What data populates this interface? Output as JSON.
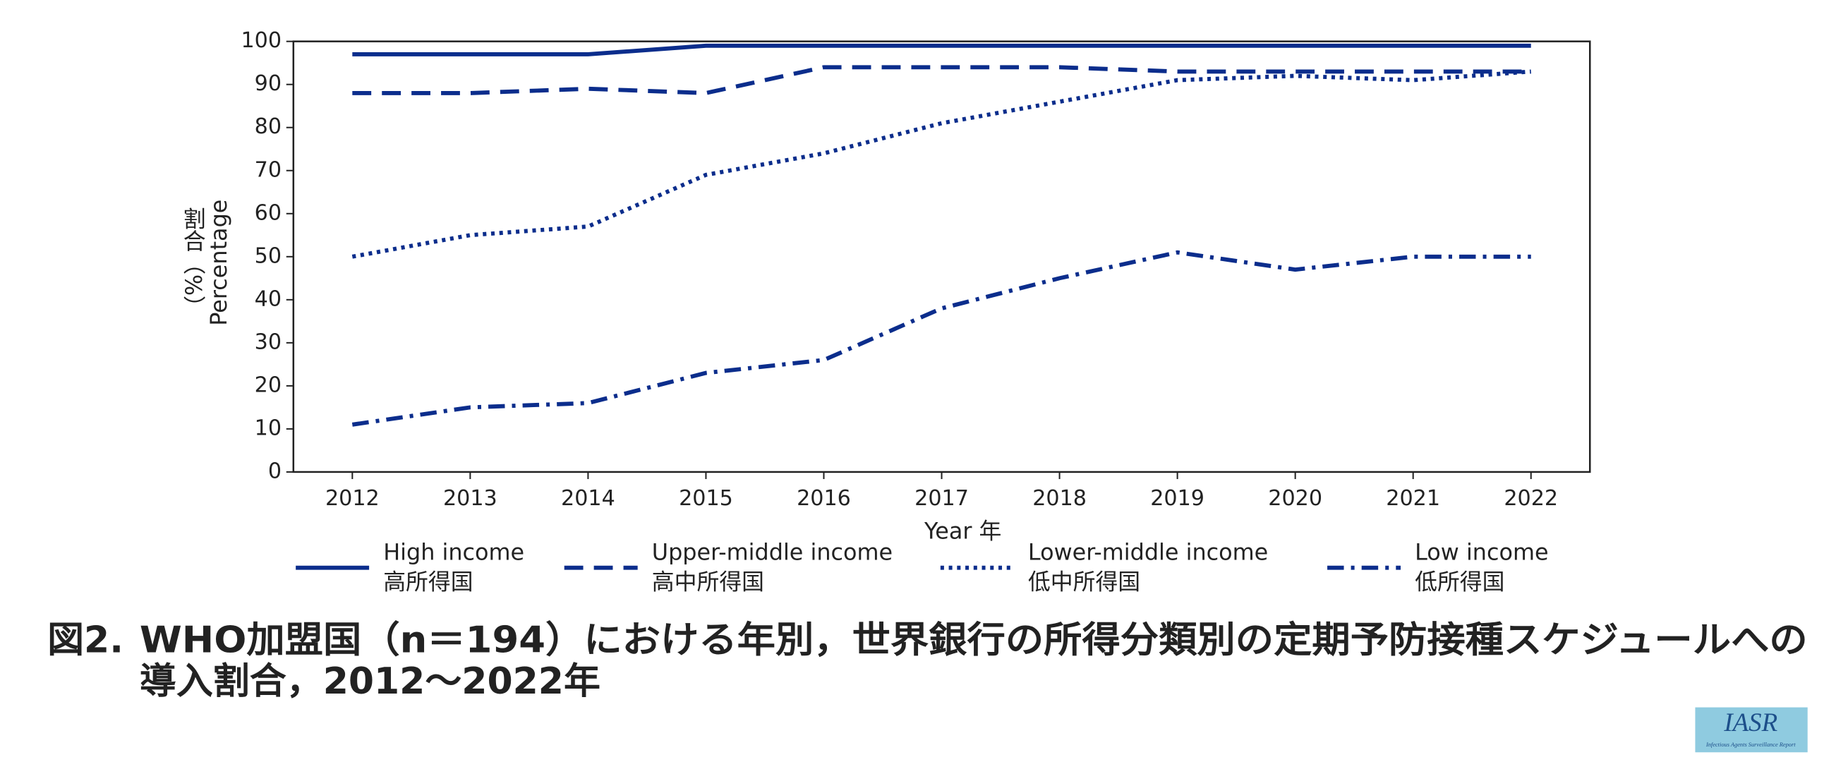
{
  "chart_data": {
    "type": "line",
    "y_label": "Percentage",
    "y_label_ja": "割合（%）",
    "x_label": "Year 年",
    "categories": [
      "2012",
      "2013",
      "2014",
      "2015",
      "2016",
      "2017",
      "2018",
      "2019",
      "2020",
      "2021",
      "2022"
    ],
    "ylim": [
      0,
      100
    ],
    "yticks": [
      0,
      10,
      20,
      30,
      40,
      50,
      60,
      70,
      80,
      90,
      100
    ],
    "series": [
      {
        "name": "High income",
        "name_ja": "高所得国",
        "color": "#0b2d8c",
        "dash": "solid",
        "values": [
          97,
          97,
          97,
          99,
          99,
          99,
          99,
          99,
          99,
          99,
          99
        ]
      },
      {
        "name": "Upper-middle income",
        "name_ja": "高中所得国",
        "color": "#0b2d8c",
        "dash": "dashed",
        "values": [
          88,
          88,
          89,
          88,
          94,
          94,
          94,
          93,
          93,
          93,
          93
        ]
      },
      {
        "name": "Lower-middle income",
        "name_ja": "低中所得国",
        "color": "#0b2d8c",
        "dash": "dotted",
        "values": [
          50,
          55,
          57,
          69,
          74,
          81,
          86,
          91,
          92,
          91,
          93
        ]
      },
      {
        "name": "Low income",
        "name_ja": "低所得国",
        "color": "#0b2d8c",
        "dash": "dashdot",
        "values": [
          11,
          15,
          16,
          23,
          26,
          38,
          45,
          51,
          47,
          50,
          50
        ]
      }
    ],
    "figure_label": "図2.",
    "caption": [
      "WHO加盟国（n＝194）における年別，世界銀行の所得分類別の定期予防接種スケジュールへの",
      "導入割合，2012～2022年"
    ],
    "logo": {
      "title": "IASR",
      "subtitle": "Infectious Agents Surveillance Report"
    }
  }
}
